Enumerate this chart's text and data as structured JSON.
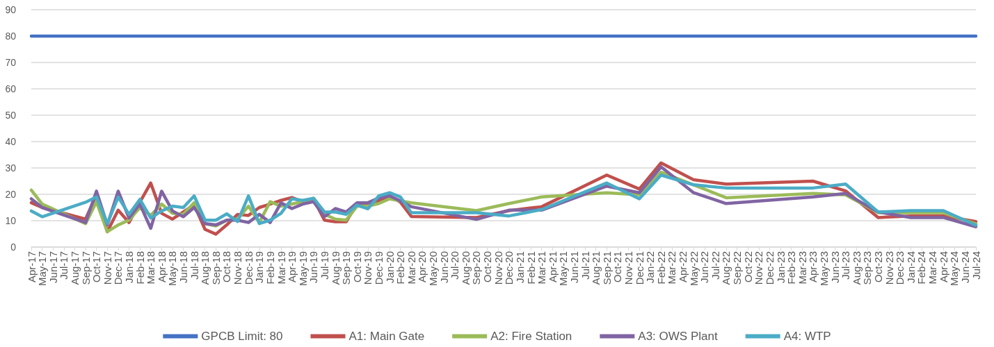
{
  "chart_data": {
    "type": "line",
    "categories": [
      "Apr-17",
      "May-17",
      "Jun-17",
      "Jul-17",
      "Aug-17",
      "Sep-17",
      "Oct-17",
      "Nov-17",
      "Dec-17",
      "Jan-18",
      "Feb-18",
      "Mar-18",
      "Apr-18",
      "May-18",
      "Jun-18",
      "Jul-18",
      "Aug-18",
      "Sep-18",
      "Oct-18",
      "Nov-18",
      "Dec-18",
      "Jan-19",
      "Feb-19",
      "Mar-19",
      "Apr-19",
      "May-19",
      "Jun-19",
      "Jul-19",
      "Aug-19",
      "Sep-19",
      "Oct-19",
      "Nov-19",
      "Dec-19",
      "Jan-20",
      "Feb-20",
      "Mar-20",
      "Apr-20",
      "May-20",
      "Jun-20",
      "Jul-20",
      "Aug-20",
      "Sep-20",
      "Oct-20",
      "Nov-20",
      "Dec-20",
      "Jan-21",
      "Feb-21",
      "Mar-21",
      "Apr-21",
      "May-21",
      "Jun-21",
      "Jul-21",
      "Aug-21",
      "Sep-21",
      "Oct-21",
      "Nov-21",
      "Dec-21",
      "Jan-22",
      "Feb-22",
      "Mar-22",
      "Apr-22",
      "May-22",
      "Jun-22",
      "Jul-22",
      "Aug-22",
      "Sep-22",
      "Oct-22",
      "Nov-22",
      "Dec-22",
      "Jan-23",
      "Feb-23",
      "Mar-23",
      "Apr-23",
      "May-23",
      "Jun-23",
      "Jul-23",
      "Aug-23",
      "Sep-23",
      "Oct-23",
      "Nov-23",
      "Dec-23",
      "Jan-24",
      "Feb-24",
      "Mar-24",
      "Apr-24",
      "May-24",
      "Jun-24",
      "Jul-24"
    ],
    "series": [
      {
        "name": "GPCB Limit: 80",
        "color": "#4472c4",
        "x": [
          "Apr-17",
          "Jul-24"
        ],
        "values": [
          80,
          80
        ]
      },
      {
        "name": "A1: Main Gate",
        "color": "#c0504d",
        "x": [
          "Apr-17",
          "May-17",
          "Sep-17",
          "Oct-17",
          "Nov-17",
          "Dec-17",
          "Jan-18",
          "Feb-18",
          "Mar-18",
          "Apr-18",
          "May-18",
          "Jun-18",
          "Jul-18",
          "Aug-18",
          "Sep-18",
          "Oct-18",
          "Nov-18",
          "Dec-18",
          "Jan-19",
          "Feb-19",
          "Mar-19",
          "Apr-19",
          "May-19",
          "Jun-19",
          "Jul-19",
          "Aug-19",
          "Sep-19",
          "Oct-19",
          "Nov-19",
          "Dec-19",
          "Jan-20",
          "Feb-20",
          "Mar-20",
          "Sep-20",
          "Dec-20",
          "Mar-21",
          "Sep-21",
          "Dec-21",
          "Feb-22",
          "May-22",
          "Aug-22",
          "Apr-23",
          "Jul-23",
          "Oct-23",
          "Jan-24",
          "Apr-24",
          "Jul-24"
        ],
        "values": [
          16.8,
          15,
          10.6,
          19.9,
          5.8,
          14,
          9.3,
          17,
          24.3,
          12.8,
          10.6,
          13.3,
          16,
          6.7,
          4.9,
          8.4,
          12.4,
          12,
          15,
          16.3,
          17.7,
          18.8,
          17.2,
          18.1,
          10.2,
          9.6,
          9.6,
          16.5,
          16,
          17.5,
          19.5,
          17,
          11.6,
          11.2,
          13.8,
          15.3,
          27.3,
          22,
          31.9,
          25.5,
          23.9,
          25,
          21.3,
          11.2,
          11.8,
          11.8,
          9.7
        ]
      },
      {
        "name": "A2: Fire Station",
        "color": "#9bbb59",
        "x": [
          "Apr-17",
          "May-17",
          "Sep-17",
          "Oct-17",
          "Nov-17",
          "Dec-17",
          "Jan-18",
          "Feb-18",
          "Mar-18",
          "Apr-18",
          "May-18",
          "Jun-18",
          "Jul-18",
          "Aug-18",
          "Sep-18",
          "Oct-18",
          "Nov-18",
          "Dec-18",
          "Jan-19",
          "Feb-19",
          "Mar-19",
          "Apr-19",
          "May-19",
          "Jun-19",
          "Jul-19",
          "Aug-19",
          "Sep-19",
          "Oct-19",
          "Nov-19",
          "Dec-19",
          "Jan-20",
          "Feb-20",
          "Mar-20",
          "Sep-20",
          "Dec-20",
          "Mar-21",
          "Sep-21",
          "Dec-21",
          "Feb-22",
          "May-22",
          "Aug-22",
          "Apr-23",
          "Jul-23",
          "Oct-23",
          "Jan-24",
          "Apr-24",
          "Jul-24"
        ],
        "values": [
          21.6,
          16.3,
          8.9,
          17.2,
          5.8,
          8.4,
          10.2,
          15,
          12,
          16.3,
          12.8,
          12.4,
          16.8,
          8.9,
          8,
          10.2,
          10.6,
          15.5,
          9.3,
          17.2,
          15.5,
          16.3,
          17.2,
          18.5,
          12.4,
          10.6,
          10.2,
          15.5,
          15.5,
          16.5,
          18.3,
          17.5,
          16.8,
          13.8,
          16.5,
          19,
          20.6,
          19.8,
          28.4,
          23.6,
          18.7,
          20.3,
          19.8,
          13,
          13,
          13,
          8.8
        ]
      },
      {
        "name": "A3: OWS Plant",
        "color": "#8064a2",
        "x": [
          "Apr-17",
          "May-17",
          "Sep-17",
          "Oct-17",
          "Nov-17",
          "Dec-17",
          "Jan-18",
          "Feb-18",
          "Mar-18",
          "Apr-18",
          "May-18",
          "Jun-18",
          "Jul-18",
          "Aug-18",
          "Sep-18",
          "Oct-18",
          "Nov-18",
          "Dec-18",
          "Jan-19",
          "Feb-19",
          "Mar-19",
          "Apr-19",
          "May-19",
          "Jun-19",
          "Jul-19",
          "Aug-19",
          "Sep-19",
          "Oct-19",
          "Nov-19",
          "Dec-19",
          "Jan-20",
          "Feb-20",
          "Mar-20",
          "Sep-20",
          "Dec-20",
          "Mar-21",
          "Sep-21",
          "Dec-21",
          "Feb-22",
          "May-22",
          "Aug-22",
          "Apr-23",
          "Jul-23",
          "Oct-23",
          "Jan-24",
          "Apr-24",
          "Jul-24"
        ],
        "values": [
          18.3,
          15,
          9.3,
          21.2,
          8.4,
          21.2,
          11,
          16.3,
          7.1,
          21.2,
          13.7,
          11.5,
          15,
          8.9,
          8.4,
          10.2,
          10.2,
          9.3,
          12.4,
          9.3,
          16.8,
          14.6,
          16.3,
          17.2,
          11.5,
          14.6,
          13.3,
          16.8,
          16.8,
          18.6,
          19.4,
          17.5,
          15.3,
          10.5,
          14,
          14,
          23.1,
          20.6,
          30.4,
          20.6,
          16.5,
          19,
          20.3,
          13.3,
          11.2,
          11.2,
          7.7
        ]
      },
      {
        "name": "A4: WTP",
        "color": "#4bacc6",
        "x": [
          "Apr-17",
          "May-17",
          "Sep-17",
          "Oct-17",
          "Nov-17",
          "Dec-17",
          "Jan-18",
          "Feb-18",
          "Mar-18",
          "Apr-18",
          "May-18",
          "Jun-18",
          "Jul-18",
          "Aug-18",
          "Sep-18",
          "Oct-18",
          "Nov-18",
          "Dec-18",
          "Jan-19",
          "Feb-19",
          "Mar-19",
          "Apr-19",
          "May-19",
          "Jun-19",
          "Jul-19",
          "Aug-19",
          "Sep-19",
          "Oct-19",
          "Nov-19",
          "Dec-19",
          "Jan-20",
          "Feb-20",
          "Mar-20",
          "Sep-20",
          "Dec-20",
          "Mar-21",
          "Sep-21",
          "Dec-21",
          "Feb-22",
          "May-22",
          "Aug-22",
          "Apr-23",
          "Jul-23",
          "Oct-23",
          "Jan-24",
          "Apr-24",
          "Jul-24"
        ],
        "values": [
          13.7,
          11.5,
          17,
          19,
          8.9,
          19,
          12.4,
          18.1,
          11,
          13.7,
          15.5,
          15,
          19.4,
          10.2,
          10.2,
          12.6,
          9.7,
          19.4,
          8.9,
          10.2,
          12.8,
          18.3,
          17.7,
          18.5,
          13.3,
          13.3,
          12.4,
          15.9,
          14.5,
          19.4,
          20.6,
          19,
          13,
          13,
          11.8,
          14.2,
          24.3,
          18.3,
          27.3,
          23.6,
          22.4,
          22.4,
          23.9,
          13.3,
          13.8,
          13.8,
          8.3
        ]
      }
    ],
    "ylim": [
      0,
      90
    ],
    "yticks": [
      0,
      10,
      20,
      30,
      40,
      50,
      60,
      70,
      80,
      90
    ],
    "grid": "y",
    "legend": "bottom",
    "marker": "none",
    "line_style": "solid"
  }
}
